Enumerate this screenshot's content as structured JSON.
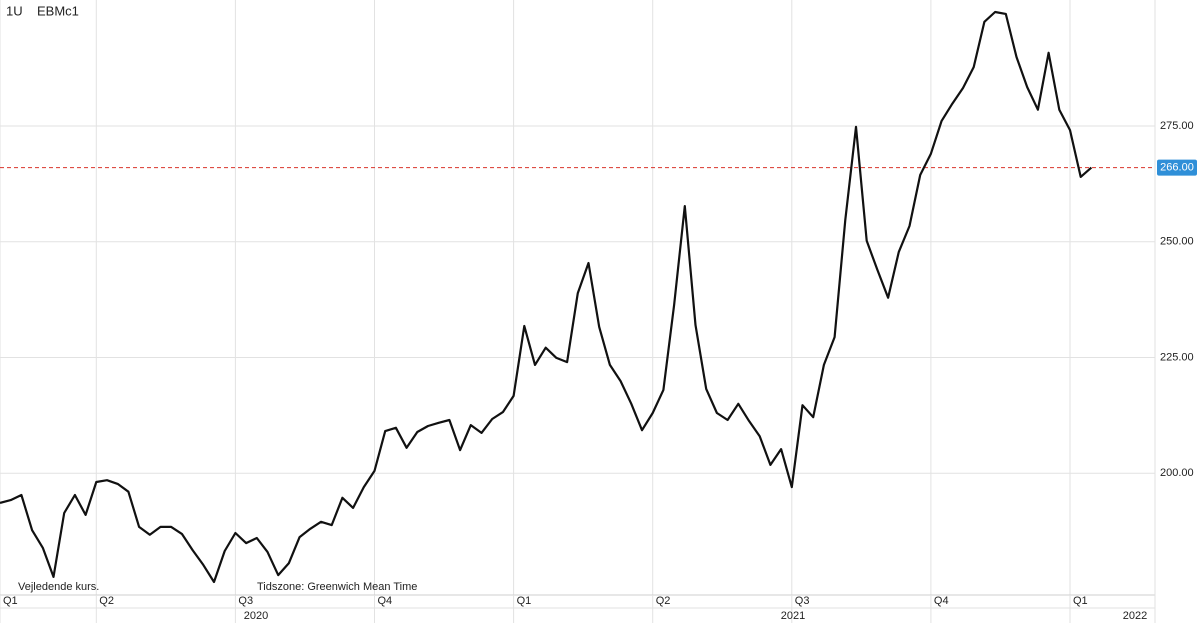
{
  "chart_data": {
    "type": "line",
    "interval": "1U",
    "symbol": "EBMc1",
    "footnote": "Vejledende kurs.",
    "timezone": "Tidszone: Greenwich Mean Time",
    "years": [
      "2020",
      "2021",
      "2022"
    ],
    "categories": [
      "Q1",
      null,
      null,
      null,
      null,
      null,
      null,
      null,
      null,
      "Q2",
      null,
      null,
      null,
      null,
      null,
      null,
      null,
      null,
      null,
      null,
      null,
      null,
      "Q3",
      null,
      null,
      null,
      null,
      null,
      null,
      null,
      null,
      null,
      null,
      null,
      null,
      "Q4",
      null,
      null,
      null,
      null,
      null,
      null,
      null,
      null,
      null,
      null,
      null,
      null,
      "Q1",
      null,
      null,
      null,
      null,
      null,
      null,
      null,
      null,
      null,
      null,
      null,
      null,
      "Q2",
      null,
      null,
      null,
      null,
      null,
      null,
      null,
      null,
      null,
      null,
      null,
      null,
      "Q3",
      null,
      null,
      null,
      null,
      null,
      null,
      null,
      null,
      null,
      null,
      null,
      null,
      "Q4",
      null,
      null,
      null,
      null,
      null,
      null,
      null,
      null,
      null,
      null,
      null,
      null,
      "Q1",
      null,
      null
    ],
    "series": [
      {
        "name": "EBMc1",
        "color": "#111111",
        "values": [
          193.6,
          194.2,
          195.3,
          187.7,
          183.9,
          177.6,
          191.4,
          195.3,
          191.0,
          198.1,
          198.5,
          197.7,
          196.0,
          188.4,
          186.7,
          188.4,
          188.4,
          186.9,
          183.4,
          180.2,
          176.5,
          183.2,
          187.1,
          184.9,
          186.0,
          183.0,
          178.0,
          180.6,
          186.2,
          188.0,
          189.5,
          188.8,
          194.7,
          192.5,
          197.0,
          200.5,
          209.1,
          209.8,
          205.5,
          208.9,
          210.2,
          210.9,
          211.5,
          205.0,
          210.4,
          208.7,
          211.7,
          213.2,
          216.7,
          231.8,
          223.4,
          227.1,
          224.9,
          224.0,
          238.9,
          245.4,
          231.6,
          223.4,
          219.9,
          215.0,
          209.3,
          213.0,
          218.0,
          236.3,
          257.7,
          232.0,
          218.2,
          213.0,
          211.5,
          215.0,
          211.3,
          208.0,
          201.8,
          205.2,
          197.0,
          214.7,
          212.1,
          223.4,
          229.4,
          254.7,
          274.8,
          250.2,
          243.9,
          237.9,
          247.8,
          253.4,
          264.4,
          269.0,
          276.1,
          279.8,
          283.2,
          287.7,
          297.5,
          299.6,
          299.2,
          289.9,
          283.4,
          278.5,
          290.8,
          278.5,
          274.1,
          264.0,
          266.0
        ]
      }
    ],
    "current": {
      "value": 266.0,
      "label": "266.00",
      "color": "#d9342b",
      "label_color": "#2f8fd8"
    },
    "ylim": [
      173.7,
      302.2
    ],
    "yticks": [
      {
        "value": 200,
        "label": "200.00"
      },
      {
        "value": 225,
        "label": "225.00"
      },
      {
        "value": 250,
        "label": "250.00"
      },
      {
        "value": 275,
        "label": "275.00"
      }
    ],
    "grid": true
  }
}
